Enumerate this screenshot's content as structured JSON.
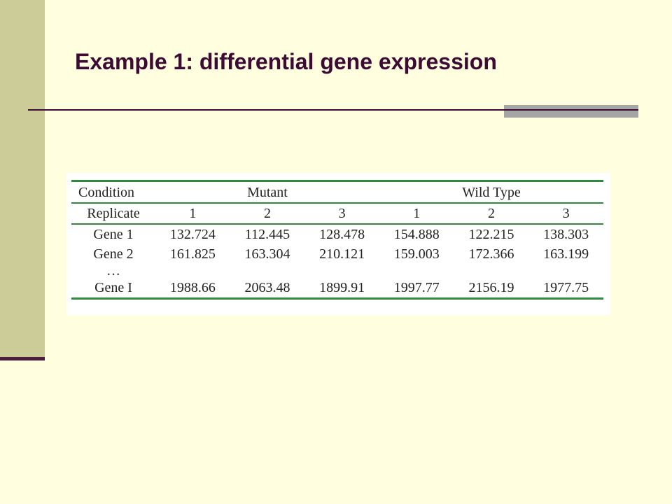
{
  "slide": {
    "title": "Example 1: differential gene expression"
  },
  "table": {
    "condition_label": "Condition",
    "mutant_label": "Mutant",
    "wildtype_label": "Wild Type",
    "replicate_label": "Replicate",
    "replicates": [
      "1",
      "2",
      "3",
      "1",
      "2",
      "3"
    ],
    "rows": [
      {
        "gene": "Gene 1",
        "values": [
          "132.724",
          "112.445",
          "128.478",
          "154.888",
          "122.215",
          "138.303"
        ]
      },
      {
        "gene": "Gene 2",
        "values": [
          "161.825",
          "163.304",
          "210.121",
          "159.003",
          "172.366",
          "163.199"
        ]
      },
      {
        "gene": "…",
        "values": [
          "",
          "",
          "",
          "",
          "",
          ""
        ]
      },
      {
        "gene": "Gene I",
        "values": [
          "1988.66",
          "2063.48",
          "1899.91",
          "1997.77",
          "2156.19",
          "1977.75"
        ]
      }
    ]
  },
  "colors": {
    "background": "#FFFFE0",
    "sidebar": "#CCCC99",
    "title": "#3D0A33",
    "table_rule": "#2E8B3E",
    "accent_block": "#A5A5A5"
  }
}
